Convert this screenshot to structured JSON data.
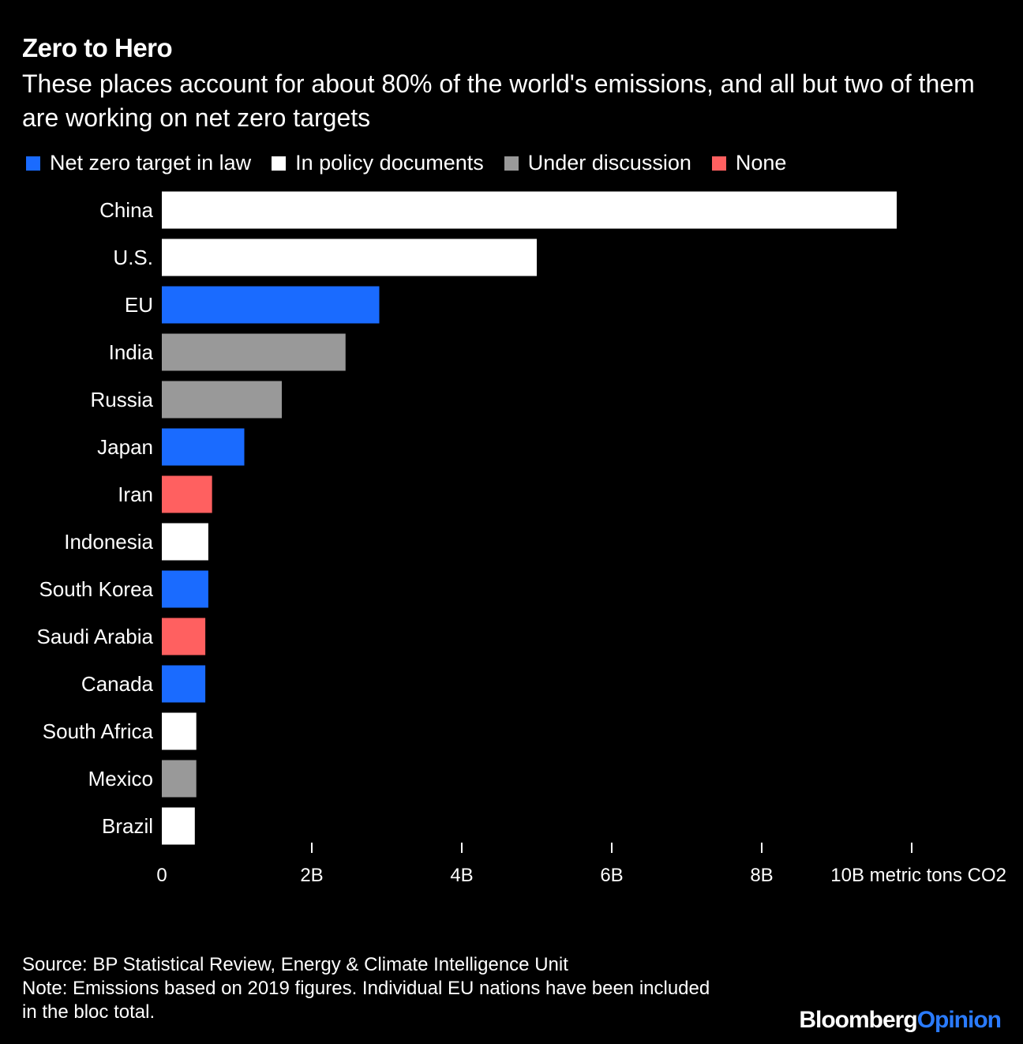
{
  "header": {
    "title": "Zero to Hero",
    "subtitle": "These places account for about 80% of the world's emissions, and all but two of them are working on net zero targets"
  },
  "legend": [
    {
      "label": "Net zero target in law",
      "color": "#1a6bff",
      "key": "law"
    },
    {
      "label": "In policy documents",
      "color": "#ffffff",
      "key": "policy"
    },
    {
      "label": "Under discussion",
      "color": "#999999",
      "key": "discussion"
    },
    {
      "label": "None",
      "color": "#ff6060",
      "key": "none"
    }
  ],
  "chart_data": {
    "type": "bar",
    "orientation": "horizontal",
    "categories": [
      "China",
      "U.S.",
      "EU",
      "India",
      "Russia",
      "Japan",
      "Iran",
      "Indonesia",
      "South Korea",
      "Saudi Arabia",
      "Canada",
      "South Africa",
      "Mexico",
      "Brazil"
    ],
    "values": [
      9.8,
      5.0,
      2.9,
      2.45,
      1.6,
      1.1,
      0.67,
      0.62,
      0.62,
      0.58,
      0.58,
      0.46,
      0.46,
      0.44
    ],
    "status": [
      "policy",
      "policy",
      "law",
      "discussion",
      "discussion",
      "law",
      "none",
      "policy",
      "law",
      "none",
      "law",
      "policy",
      "discussion",
      "policy"
    ],
    "x_tick_values": [
      0,
      2,
      4,
      6,
      8,
      10
    ],
    "x_tick_labels": [
      "0",
      "2B",
      "4B",
      "6B",
      "8B",
      "10B metric tons CO2"
    ],
    "xlim": [
      0,
      10
    ],
    "unit": "billion metric tons CO2",
    "grid": false,
    "legend_position": "top-left"
  },
  "footer": {
    "source": "Source: BP Statistical Review, Energy & Climate Intelligence Unit",
    "note_line1": "Note: Emissions based on 2019 figures. Individual EU nations have been included",
    "note_line2": "in the bloc total."
  },
  "brand": {
    "part1": "Bloomberg",
    "part2": "Opinion"
  }
}
